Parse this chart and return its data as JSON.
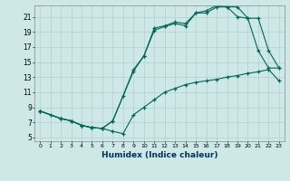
{
  "xlabel": "Humidex (Indice chaleur)",
  "bg_color": "#cee8e8",
  "grid_color": "#b0d0cc",
  "line_color": "#006655",
  "xlim": [
    -0.5,
    23.5
  ],
  "ylim": [
    4.5,
    22.5
  ],
  "xticks": [
    0,
    1,
    2,
    3,
    4,
    5,
    6,
    7,
    8,
    9,
    10,
    11,
    12,
    13,
    14,
    15,
    16,
    17,
    18,
    19,
    20,
    21,
    22,
    23
  ],
  "yticks": [
    5,
    7,
    9,
    11,
    13,
    15,
    17,
    19,
    21
  ],
  "line1_x": [
    0,
    1,
    2,
    3,
    4,
    5,
    6,
    7,
    8,
    9,
    10,
    11,
    12,
    13,
    14,
    15,
    16,
    17,
    18,
    19,
    20,
    21,
    22,
    23
  ],
  "line1_y": [
    8.5,
    8.0,
    7.5,
    7.2,
    6.6,
    6.3,
    6.2,
    5.8,
    5.5,
    8.0,
    9.0,
    10.0,
    11.0,
    11.5,
    12.0,
    12.3,
    12.5,
    12.7,
    13.0,
    13.2,
    13.5,
    13.7,
    14.0,
    12.5
  ],
  "line2_x": [
    0,
    2,
    3,
    4,
    5,
    6,
    7,
    8,
    9,
    10,
    11,
    12,
    13,
    14,
    15,
    16,
    17,
    18,
    19,
    20,
    21,
    22,
    23
  ],
  "line2_y": [
    8.5,
    7.5,
    7.2,
    6.6,
    6.3,
    6.2,
    7.2,
    10.5,
    14.0,
    15.8,
    19.2,
    19.7,
    20.1,
    19.8,
    21.5,
    21.5,
    22.3,
    22.3,
    22.3,
    20.8,
    20.8,
    16.5,
    14.2
  ],
  "line3_x": [
    0,
    2,
    3,
    4,
    5,
    6,
    7,
    9,
    10,
    11,
    12,
    13,
    14,
    15,
    16,
    17,
    18,
    19,
    20,
    21,
    22,
    23
  ],
  "line3_y": [
    8.5,
    7.5,
    7.2,
    6.6,
    6.3,
    6.2,
    7.2,
    13.8,
    15.8,
    19.5,
    19.8,
    20.3,
    20.1,
    21.5,
    21.8,
    22.5,
    22.3,
    21.0,
    20.8,
    16.5,
    14.2,
    14.2
  ]
}
